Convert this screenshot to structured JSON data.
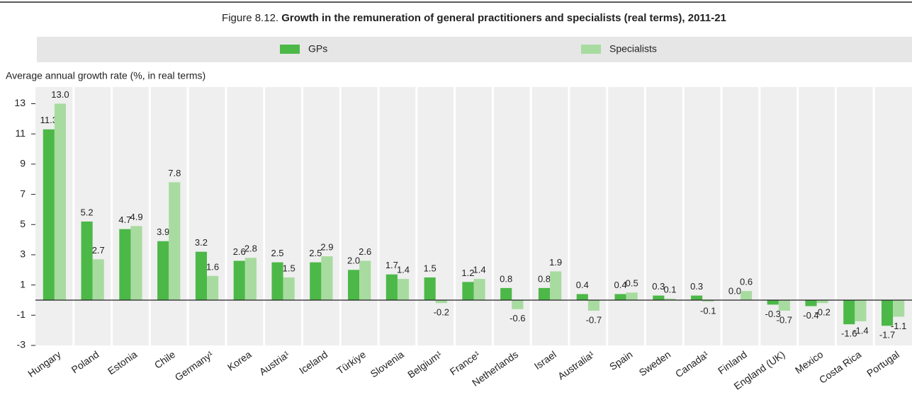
{
  "chart_data": {
    "type": "bar",
    "figure_label": "Figure 8.12.",
    "title": "Growth in the remuneration of general practitioners and specialists (real terms), 2011-21",
    "y_axis_label": "Average annual growth rate (%, in real terms)",
    "categories": [
      "Hungary",
      "Poland",
      "Estonia",
      "Chile",
      "Germany¹",
      "Korea",
      "Austria¹",
      "Iceland",
      "Türkiye",
      "Slovenia",
      "Belgium¹",
      "France¹",
      "Netherlands",
      "Israel",
      "Australia¹",
      "Spain",
      "Sweden",
      "Canada¹",
      "Finland",
      "England (UK)",
      "Mexico",
      "Costa Rica",
      "Portugal"
    ],
    "series": [
      {
        "name": "GPs",
        "color": "#4cb848",
        "values": [
          11.3,
          5.2,
          4.7,
          3.9,
          3.2,
          2.6,
          2.5,
          2.5,
          2.0,
          1.7,
          1.5,
          1.2,
          0.8,
          0.8,
          0.4,
          0.4,
          0.3,
          0.3,
          0.0,
          -0.3,
          -0.4,
          -1.6,
          -1.7
        ],
        "value_labels": [
          "11.3",
          "5.2",
          "4.7",
          "3.9",
          "3.2",
          "2.6",
          "2.5",
          "2.5",
          "2.0",
          "1.7",
          "1.5",
          "1.2",
          "0.8",
          "0.8",
          "0.4",
          "0.4",
          "0.3",
          "0.3",
          "0.0",
          "-0.3",
          "-0.4",
          "-1.6",
          "-1.7"
        ]
      },
      {
        "name": "Specialists",
        "color": "#a8dba0",
        "values": [
          13.0,
          2.7,
          4.9,
          7.8,
          1.6,
          2.8,
          1.5,
          2.9,
          2.6,
          1.4,
          -0.2,
          1.4,
          -0.6,
          1.9,
          -0.7,
          0.5,
          0.1,
          -0.1,
          0.6,
          -0.7,
          -0.2,
          -1.4,
          -1.1
        ],
        "value_labels": [
          "13.0",
          "2.7",
          "4.9",
          "7.8",
          "1.6",
          "2.8",
          "1.5",
          "2.9",
          "2.6",
          "1.4",
          "-0.2",
          "1.4",
          "-0.6",
          "1.9",
          "-0.7",
          "0.5",
          "0.1",
          "-0.1",
          "0.6",
          "-0.7",
          "-0.2",
          "-1.4",
          "-1.1"
        ]
      }
    ],
    "ylim": [
      -3,
      14.1
    ],
    "yticks": [
      -3,
      -1,
      1,
      3,
      5,
      7,
      9,
      11,
      13
    ],
    "legend": "top"
  }
}
